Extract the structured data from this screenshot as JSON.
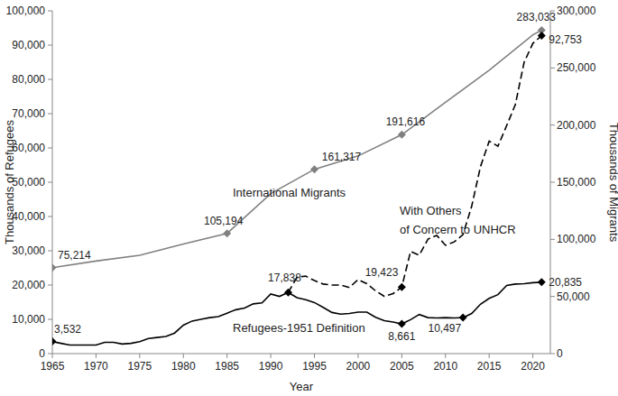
{
  "chart_data": {
    "type": "line",
    "x_label": "Year",
    "y_label": "Thousands of Refugees",
    "y2_label": "Thousands of Migrants",
    "xlim": [
      1965,
      2022
    ],
    "xticks": [
      1965,
      1970,
      1975,
      1980,
      1985,
      1990,
      1995,
      2000,
      2005,
      2010,
      2015,
      2020
    ],
    "ylim": [
      0,
      100000
    ],
    "yticks": [
      0,
      {
        "value": 10000,
        "label": "10,000"
      },
      {
        "value": 20000,
        "label": "20,000"
      },
      {
        "value": 30000,
        "label": "30,000"
      },
      {
        "value": 40000,
        "label": "40,000"
      },
      {
        "value": 50000,
        "label": "50,000"
      },
      {
        "value": 60000,
        "label": "60,000"
      },
      {
        "value": 70000,
        "label": "70,000"
      },
      {
        "value": 80000,
        "label": "80,000"
      },
      {
        "value": 90000,
        "label": "90,000"
      },
      {
        "value": 100000,
        "label": "100,000"
      }
    ],
    "y2lim": [
      0,
      300000
    ],
    "y2ticks": [
      0,
      {
        "value": 50000,
        "label": "50,000"
      },
      {
        "value": 100000,
        "label": "100,000"
      },
      {
        "value": 150000,
        "label": "150,000"
      },
      {
        "value": 200000,
        "label": "200,000"
      },
      {
        "value": 250000,
        "label": "250,000"
      },
      {
        "value": 300000,
        "label": "300,000"
      }
    ],
    "grid": false,
    "series": [
      {
        "name": "International Migrants",
        "color": "#808080",
        "axis": "y2",
        "marker": "diamond",
        "line_style": "solid",
        "x": [
          1965,
          1970,
          1975,
          1980,
          1985,
          1990,
          1995,
          2000,
          2005,
          2010,
          2015,
          2020,
          2021
        ],
        "values": [
          75214,
          81000,
          86000,
          96000,
          105194,
          140000,
          161317,
          173000,
          191616,
          220000,
          248000,
          279000,
          283033
        ],
        "value_labels": [
          "75,214",
          null,
          null,
          null,
          "105,194",
          null,
          "161,317",
          null,
          "191,616",
          null,
          null,
          null,
          "283,033"
        ]
      },
      {
        "name": "With Others of Concern to UNHCR",
        "color": "#000000",
        "marker": "diamond",
        "line_style": "dashed",
        "x": [
          1992,
          1993,
          1994,
          1995,
          1996,
          1997,
          1998,
          1999,
          2000,
          2001,
          2002,
          2003,
          2004,
          2005,
          2006,
          2007,
          2008,
          2009,
          2010,
          2011,
          2012,
          2013,
          2014,
          2015,
          2016,
          2017,
          2018,
          2019,
          2020,
          2021
        ],
        "values": [
          17838,
          22300,
          22600,
          21300,
          20300,
          20000,
          20000,
          19300,
          21600,
          20400,
          18300,
          16700,
          17500,
          19423,
          29800,
          28700,
          33400,
          34500,
          31600,
          32600,
          34700,
          43000,
          54500,
          62000,
          60500,
          66500,
          72700,
          85000,
          90500,
          92753
        ],
        "value_labels": [
          null,
          null,
          null,
          null,
          null,
          null,
          null,
          null,
          null,
          null,
          null,
          null,
          null,
          "19,423",
          null,
          null,
          null,
          null,
          null,
          null,
          null,
          null,
          null,
          null,
          null,
          null,
          null,
          null,
          null,
          "92,753"
        ]
      },
      {
        "name": "Refugees-1951 Definition",
        "color": "#000000",
        "marker": "diamond",
        "line_style": "solid",
        "x": [
          1965,
          1966,
          1967,
          1968,
          1969,
          1970,
          1971,
          1972,
          1973,
          1974,
          1975,
          1976,
          1977,
          1978,
          1979,
          1980,
          1981,
          1982,
          1983,
          1984,
          1985,
          1986,
          1987,
          1988,
          1989,
          1990,
          1991,
          1992,
          1993,
          1994,
          1995,
          1996,
          1997,
          1998,
          1999,
          2000,
          2001,
          2002,
          2003,
          2004,
          2005,
          2006,
          2007,
          2008,
          2009,
          2010,
          2011,
          2012,
          2013,
          2014,
          2015,
          2016,
          2017,
          2018,
          2019,
          2020,
          2021
        ],
        "values": [
          3532,
          3000,
          2500,
          2500,
          2500,
          2500,
          3300,
          3300,
          2800,
          3000,
          3500,
          4400,
          4700,
          5000,
          6000,
          8300,
          9500,
          10000,
          10500,
          10800,
          11800,
          12800,
          13300,
          14500,
          14800,
          17400,
          16700,
          17838,
          16300,
          15700,
          14900,
          13500,
          12000,
          11500,
          11700,
          12100,
          12100,
          10600,
          9600,
          9200,
          8661,
          9900,
          11400,
          10500,
          10400,
          10500,
          10400,
          10497,
          11700,
          14400,
          16100,
          17200,
          19900,
          20300,
          20400,
          20700,
          20835
        ],
        "value_labels": [
          "3,532",
          null,
          null,
          null,
          null,
          null,
          null,
          null,
          null,
          null,
          null,
          null,
          null,
          null,
          null,
          null,
          null,
          null,
          null,
          null,
          null,
          null,
          null,
          null,
          null,
          null,
          null,
          "17,838",
          null,
          null,
          null,
          null,
          null,
          null,
          null,
          null,
          null,
          null,
          null,
          null,
          "8,661",
          null,
          null,
          null,
          null,
          null,
          null,
          "10,497",
          null,
          null,
          null,
          null,
          null,
          null,
          null,
          null,
          "20,835"
        ]
      }
    ]
  }
}
